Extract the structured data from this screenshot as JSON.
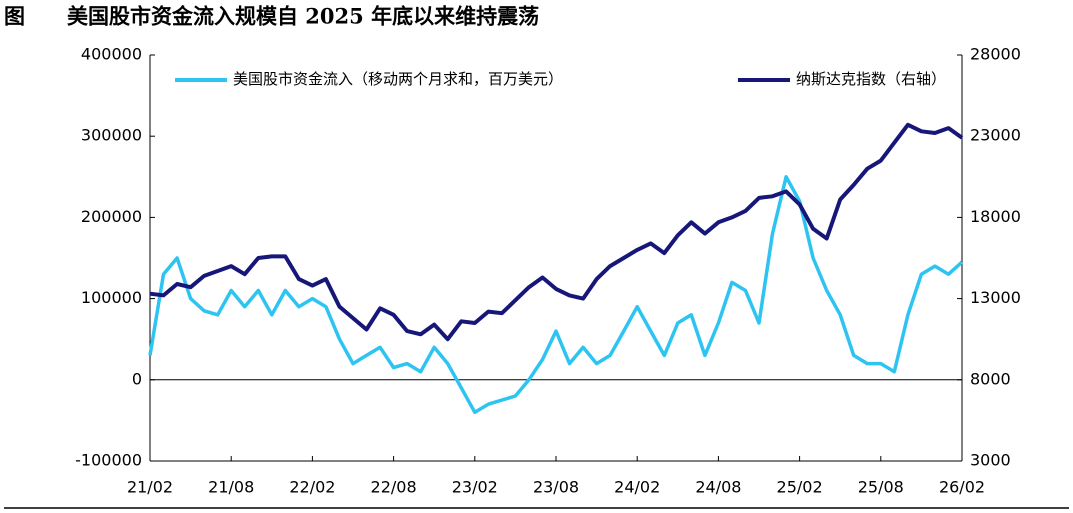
{
  "chart_data": {
    "type": "line",
    "title": "图　　美国股市资金流入规模自 2025 年底以来维持震荡",
    "categories": [
      "21/02",
      null,
      null,
      null,
      null,
      null,
      "21/08",
      null,
      null,
      null,
      null,
      null,
      "22/02",
      null,
      null,
      null,
      null,
      null,
      "22/08",
      null,
      null,
      null,
      null,
      null,
      "23/02",
      null,
      null,
      null,
      null,
      null,
      "23/08",
      null,
      null,
      null,
      null,
      null,
      "24/02",
      null,
      null,
      null,
      null,
      null,
      "24/08",
      null,
      null,
      null,
      null,
      null,
      "25/02",
      null,
      null,
      null,
      null,
      null,
      "25/08",
      null,
      null,
      null,
      null,
      null,
      "26/02"
    ],
    "ylim": [
      -100000,
      400000
    ],
    "yticks": [
      -100000,
      0,
      100000,
      200000,
      300000,
      400000
    ],
    "y2lim": [
      3000,
      28000
    ],
    "y2ticks": [
      3000,
      8000,
      13000,
      18000,
      23000,
      28000
    ],
    "legend": "top",
    "series": [
      {
        "name": "美国股市资金流入（移动两个月求和，百万美元）",
        "color": "#2ec4f2",
        "axis": "y",
        "values": [
          30000,
          130000,
          150000,
          100000,
          85000,
          80000,
          110000,
          90000,
          110000,
          80000,
          110000,
          90000,
          100000,
          90000,
          50000,
          20000,
          30000,
          40000,
          15000,
          20000,
          10000,
          40000,
          20000,
          -10000,
          -40000,
          -30000,
          -25000,
          -20000,
          0,
          25000,
          60000,
          20000,
          40000,
          20000,
          30000,
          60000,
          90000,
          60000,
          30000,
          70000,
          80000,
          30000,
          70000,
          120000,
          110000,
          70000,
          180000,
          250000,
          220000,
          150000,
          110000,
          80000,
          30000,
          20000,
          20000,
          10000,
          80000,
          130000,
          140000,
          130000,
          145000
        ]
      },
      {
        "name": "纳斯达克指数（右轴）",
        "color": "#17177a",
        "axis": "y2",
        "values": [
          13300,
          13200,
          13900,
          13700,
          14400,
          14700,
          15000,
          14500,
          15500,
          15600,
          15600,
          14200,
          13800,
          14200,
          12500,
          11800,
          11100,
          12400,
          12000,
          11000,
          10800,
          11400,
          10500,
          11600,
          11500,
          12200,
          12100,
          12900,
          13700,
          14300,
          13600,
          13200,
          13000,
          14200,
          15000,
          15500,
          16000,
          16400,
          15800,
          16900,
          17700,
          17000,
          17700,
          18000,
          18400,
          19200,
          19300,
          19600,
          18800,
          17300,
          16700,
          19100,
          20000,
          21000,
          21500,
          22600,
          23700,
          23300,
          23200,
          23500,
          22900
        ]
      }
    ]
  }
}
